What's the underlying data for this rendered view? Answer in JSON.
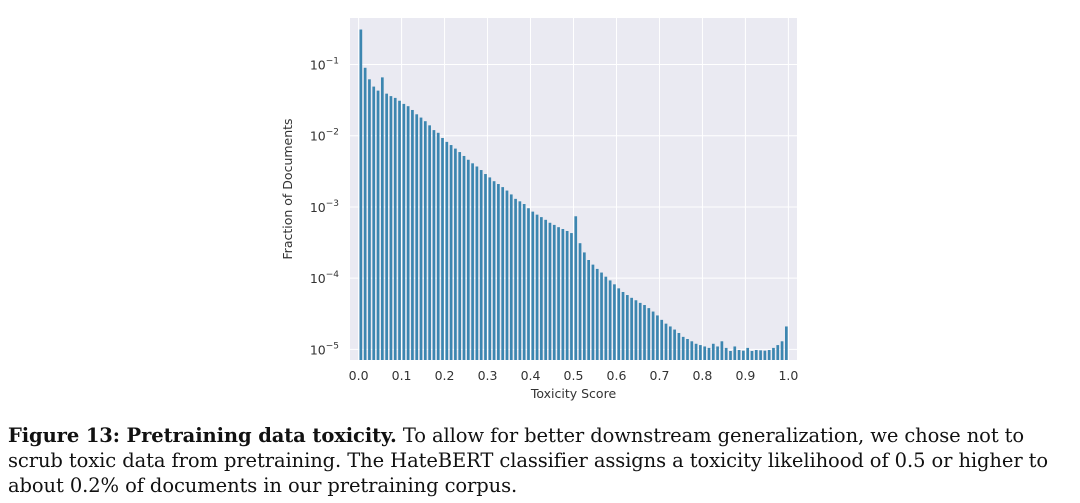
{
  "chart_data": {
    "type": "bar",
    "title": "",
    "xlabel": "Toxicity Score",
    "ylabel": "Fraction of Documents",
    "yscale": "log",
    "xlim": [
      -0.02,
      1.02
    ],
    "ylim": [
      7.1e-06,
      0.45
    ],
    "grid": true,
    "background": "#eaeaf2",
    "bar_color": "#3c86b0",
    "x_ticks": [
      {
        "value": 0.0,
        "label": "0.0"
      },
      {
        "value": 0.1,
        "label": "0.1"
      },
      {
        "value": 0.2,
        "label": "0.2"
      },
      {
        "value": 0.3,
        "label": "0.3"
      },
      {
        "value": 0.4,
        "label": "0.4"
      },
      {
        "value": 0.5,
        "label": "0.5"
      },
      {
        "value": 0.6,
        "label": "0.6"
      },
      {
        "value": 0.7,
        "label": "0.7"
      },
      {
        "value": 0.8,
        "label": "0.8"
      },
      {
        "value": 0.9,
        "label": "0.9"
      },
      {
        "value": 1.0,
        "label": "1.0"
      }
    ],
    "y_ticks": [
      {
        "value": 0.1,
        "base": "10",
        "exp": "−1"
      },
      {
        "value": 0.01,
        "base": "10",
        "exp": "−2"
      },
      {
        "value": 0.001,
        "base": "10",
        "exp": "−3"
      },
      {
        "value": 0.0001,
        "base": "10",
        "exp": "−4"
      },
      {
        "value": 1e-05,
        "base": "10",
        "exp": "−5"
      }
    ],
    "bin_width": 0.01,
    "x": [
      0.0,
      0.01,
      0.02,
      0.03,
      0.04,
      0.05,
      0.06,
      0.07,
      0.08,
      0.09,
      0.1,
      0.11,
      0.12,
      0.13,
      0.14,
      0.15,
      0.16,
      0.17,
      0.18,
      0.19,
      0.2,
      0.21,
      0.22,
      0.23,
      0.24,
      0.25,
      0.26,
      0.27,
      0.28,
      0.29,
      0.3,
      0.31,
      0.32,
      0.33,
      0.34,
      0.35,
      0.36,
      0.37,
      0.38,
      0.39,
      0.4,
      0.41,
      0.42,
      0.43,
      0.44,
      0.45,
      0.46,
      0.47,
      0.48,
      0.49,
      0.5,
      0.51,
      0.52,
      0.53,
      0.54,
      0.55,
      0.56,
      0.57,
      0.58,
      0.59,
      0.6,
      0.61,
      0.62,
      0.63,
      0.64,
      0.65,
      0.66,
      0.67,
      0.68,
      0.69,
      0.7,
      0.71,
      0.72,
      0.73,
      0.74,
      0.75,
      0.76,
      0.77,
      0.78,
      0.79,
      0.8,
      0.81,
      0.82,
      0.83,
      0.84,
      0.85,
      0.86,
      0.87,
      0.88,
      0.89,
      0.9,
      0.91,
      0.92,
      0.93,
      0.94,
      0.95,
      0.96,
      0.97,
      0.98,
      0.99
    ],
    "values": [
      0.31,
      0.09,
      0.062,
      0.049,
      0.043,
      0.066,
      0.039,
      0.036,
      0.034,
      0.031,
      0.028,
      0.026,
      0.023,
      0.02,
      0.018,
      0.016,
      0.014,
      0.012,
      0.011,
      0.0093,
      0.0082,
      0.0074,
      0.0066,
      0.0059,
      0.0052,
      0.0046,
      0.0041,
      0.0037,
      0.0033,
      0.0029,
      0.0026,
      0.0023,
      0.0021,
      0.0019,
      0.0017,
      0.0015,
      0.0013,
      0.0012,
      0.0011,
      0.00096,
      0.00086,
      0.00078,
      0.00072,
      0.00066,
      0.0006,
      0.00056,
      0.00052,
      0.00049,
      0.00046,
      0.00043,
      0.00074,
      0.00031,
      0.00023,
      0.00018,
      0.000155,
      0.000135,
      0.00012,
      0.000105,
      9.3e-05,
      8.2e-05,
      7.2e-05,
      6.4e-05,
      5.8e-05,
      5.3e-05,
      4.9e-05,
      4.5e-05,
      4.2e-05,
      3.8e-05,
      3.4e-05,
      3e-05,
      2.6e-05,
      2.3e-05,
      2.1e-05,
      1.9e-05,
      1.7e-05,
      1.5e-05,
      1.4e-05,
      1.3e-05,
      1.2e-05,
      1.15e-05,
      1.1e-05,
      1.05e-05,
      1.2e-05,
      1.1e-05,
      1.3e-05,
      1.05e-05,
      9.5e-06,
      1.1e-05,
      9.8e-06,
      9.6e-06,
      1.05e-05,
      9.5e-06,
      9.8e-06,
      9.7e-06,
      9.6e-06,
      9.8e-06,
      1.05e-05,
      1.15e-05,
      1.3e-05,
      2.1e-05
    ]
  },
  "caption": {
    "label": "Figure 13: Pretraining data toxicity.",
    "text": " To allow for better downstream generalization, we chose not to scrub toxic data from pretraining. The HateBERT classifier assigns a toxicity likelihood of 0.5 or higher to about 0.2% of documents in our pretraining corpus."
  }
}
